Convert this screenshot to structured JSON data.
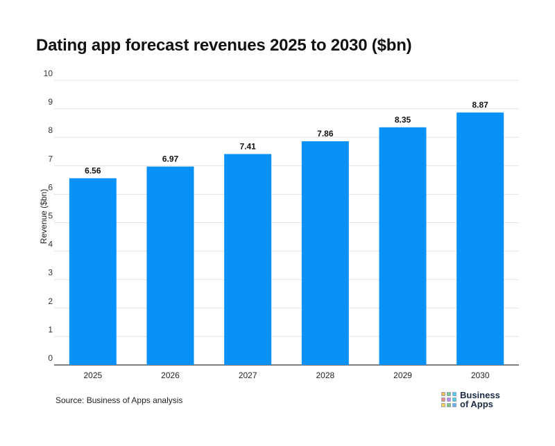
{
  "title": "Dating app forecast revenues 2025 to 2030 ($bn)",
  "source": "Source: Business of Apps analysis",
  "logo": {
    "line1": "Business",
    "line2": "of Apps",
    "square_colors": [
      "#f5c04a",
      "#6fcf97",
      "#56ccf2",
      "#f28b82",
      "#bb86fc",
      "#4dd0e1",
      "#ffd54f",
      "#81c784",
      "#64b5f6"
    ]
  },
  "chart_data": {
    "type": "bar",
    "categories": [
      "2025",
      "2026",
      "2027",
      "2028",
      "2029",
      "2030"
    ],
    "values": [
      6.56,
      6.97,
      7.41,
      7.86,
      8.35,
      8.87
    ],
    "data_labels": [
      "6.56",
      "6.97",
      "7.41",
      "7.86",
      "8.35",
      "8.87"
    ],
    "ylabel": "Revenue ($bn)",
    "xlabel": "",
    "ylim": [
      0,
      10
    ],
    "yticks": [
      0,
      1,
      2,
      3,
      4,
      5,
      6,
      7,
      8,
      9,
      10
    ],
    "bar_color": "#0891f8",
    "grid": true
  }
}
